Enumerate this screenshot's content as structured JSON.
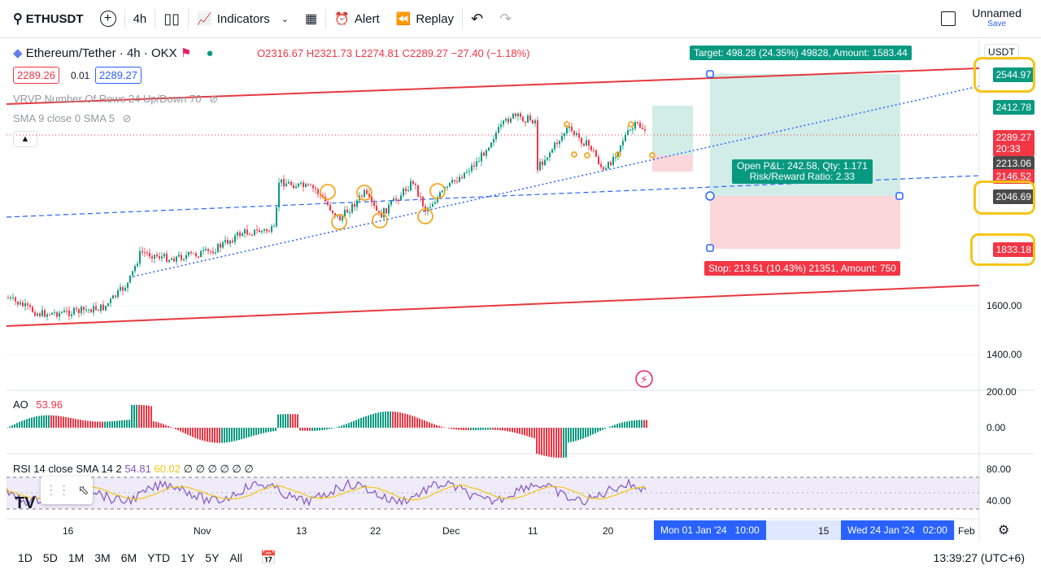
{
  "topbar": {
    "symbol": "ETHUSDT",
    "interval": "4h",
    "indicators": "Indicators",
    "alert": "Alert",
    "replay": "Replay",
    "layout_name": "Unnamed",
    "save": "Save"
  },
  "legend": {
    "title": "Ethereum/Tether · 4h · OKX",
    "open": "O2316.67",
    "high": "H2321.73",
    "low": "L2274.81",
    "close": "C2289.27",
    "change": "−27.40 (−1.18%)",
    "bid": "2289.26",
    "spread": "0.01",
    "ask": "2289.27",
    "vrvp": "VRVP Number Of Rows 24 Up/Down 70",
    "sma": "SMA 9 close 0 SMA 5",
    "currency": "USDT"
  },
  "trade": {
    "target": "Target: 498.28 (24.35%) 49828, Amount: 1583.44",
    "pnl": "Open P&L: 242.58, Qty: 1.171",
    "rr": "Risk/Reward Ratio: 2.33",
    "stop": "Stop: 213.51 (10.43%) 21351, Amount: 750"
  },
  "price_axis": {
    "target_tag": "2544.97",
    "p2412": "2412.78",
    "last": "2289.27",
    "countdown": "20:33",
    "p2213": "2213.06",
    "p2146": "2146.52",
    "entry_tag": "2046.69",
    "stop_tag": "1833.18",
    "l1600": "1600.00",
    "l1400": "1400.00"
  },
  "ao": {
    "label": "AO",
    "value": "53.96",
    "l200": "200.00",
    "l0": "0.00"
  },
  "rsi": {
    "label": "RSI 14 close SMA 14 2",
    "v1": "54.81",
    "v2": "60.02",
    "rest": "∅ ∅ ∅ ∅ ∅ ∅",
    "l80": "80.00",
    "l40": "40.00"
  },
  "time_axis": {
    "t1": "16",
    "t2": "Nov",
    "t3": "13",
    "t4": "22",
    "t5": "Dec",
    "t6": "11",
    "t7": "20",
    "start_tag": "Mon 01 Jan '24   10:00",
    "mid": "15",
    "end_tag": "Wed 24 Jan '24   02:00",
    "feb": "Feb"
  },
  "bottombar": {
    "ranges": [
      "1D",
      "5D",
      "1M",
      "3M",
      "6M",
      "YTD",
      "1Y",
      "5Y",
      "All"
    ],
    "clock": "13:39:27 (UTC+6)"
  },
  "colors": {
    "up": "#089981",
    "down": "#f23645",
    "target_bg": "#089981",
    "stop_bg": "#f23645",
    "highlight": "#f5c518"
  }
}
